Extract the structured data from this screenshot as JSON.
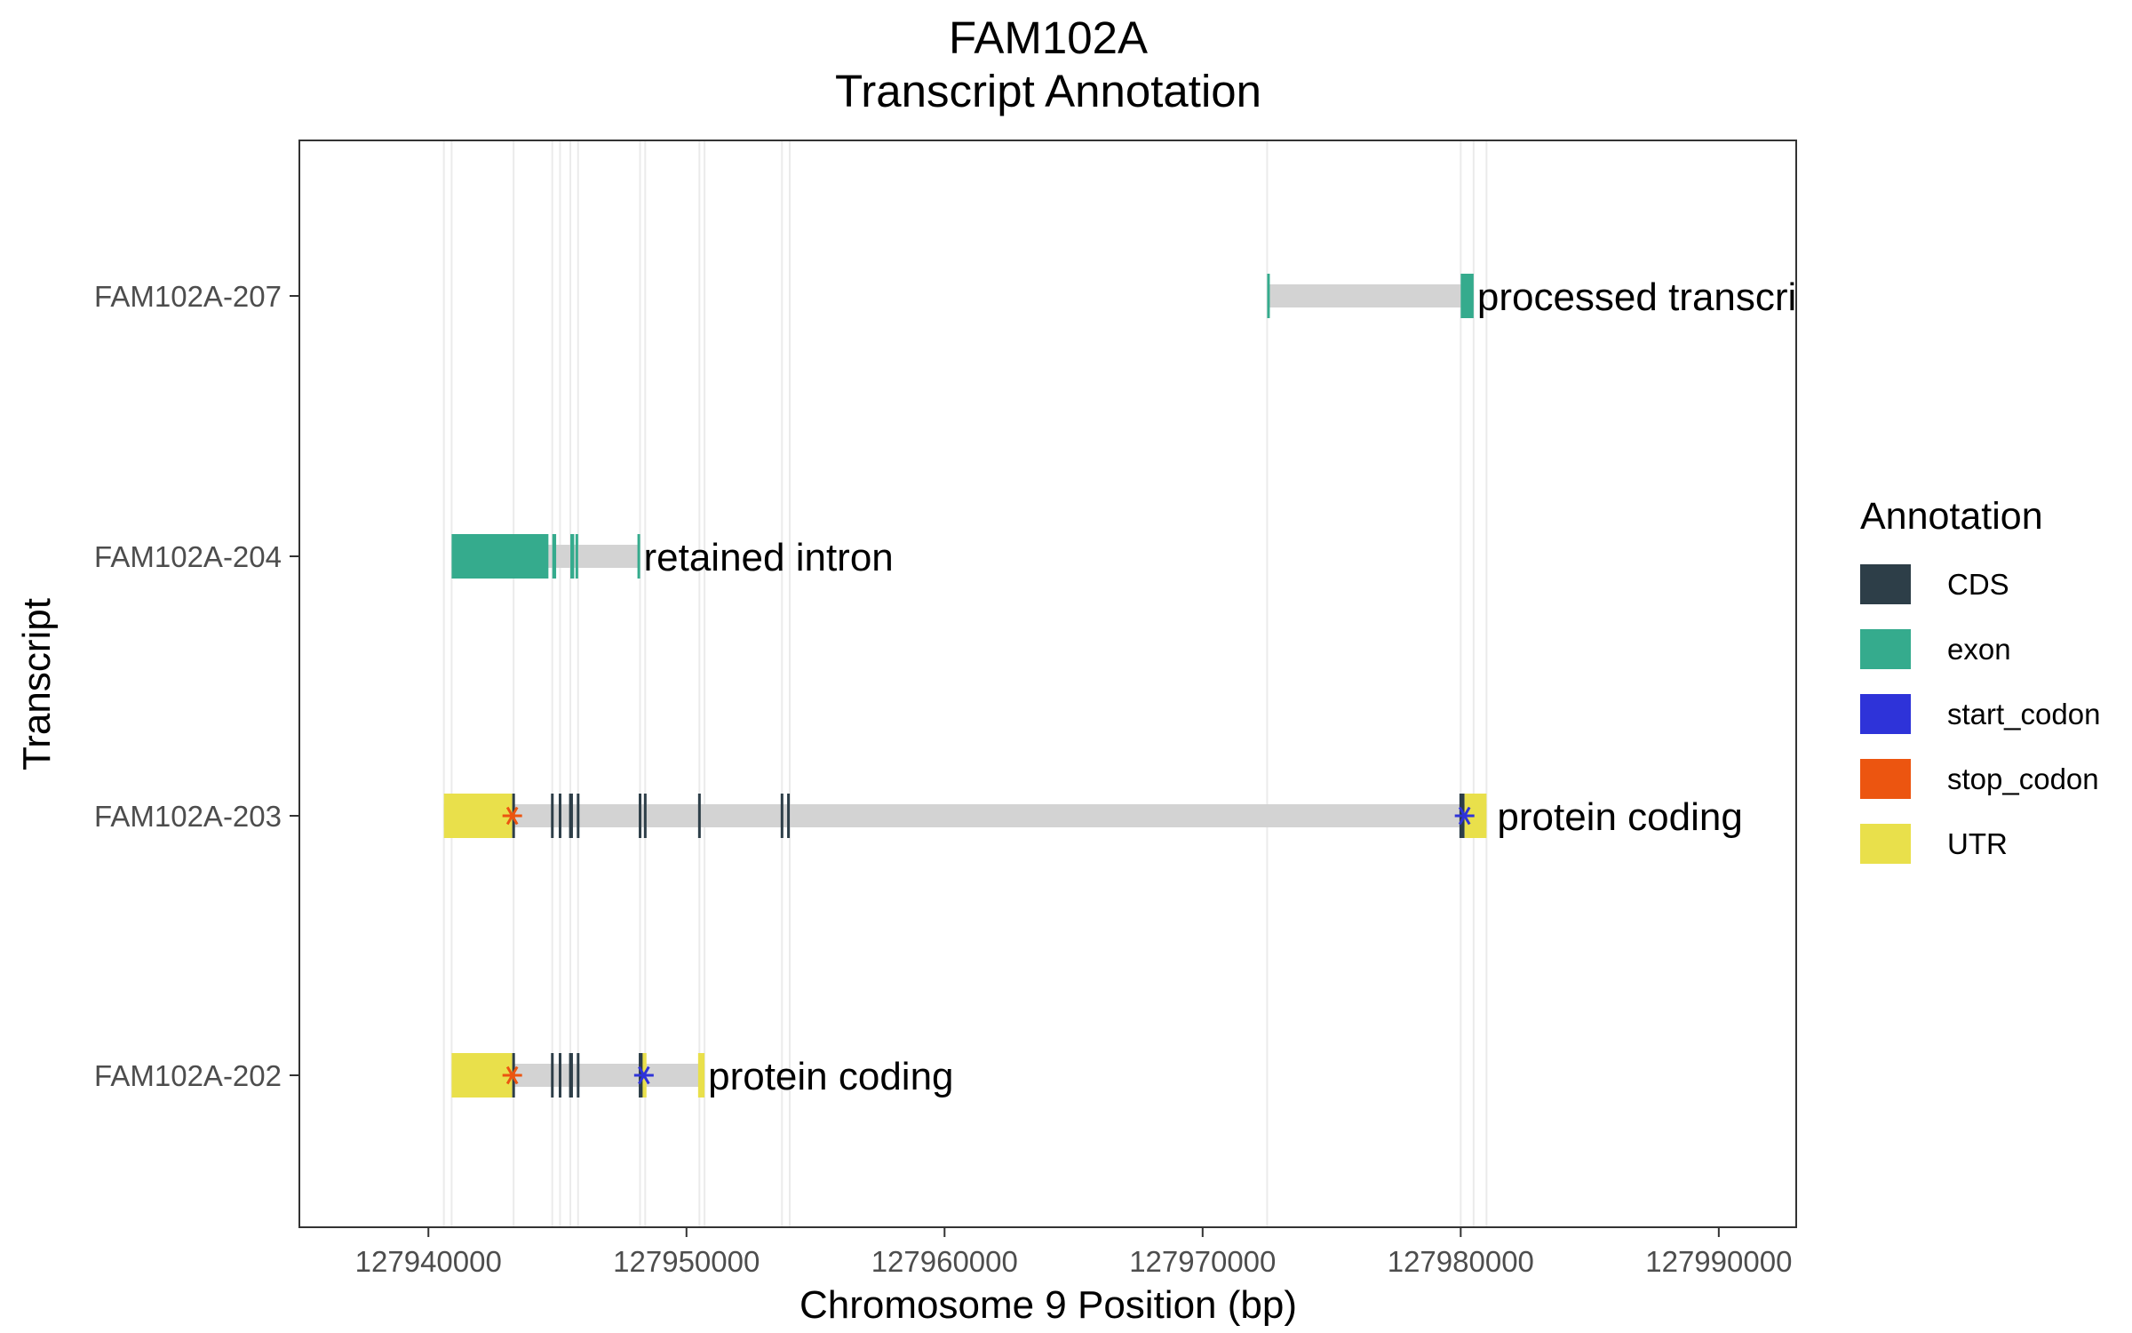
{
  "chart_data": {
    "type": "gene_transcript_annotation",
    "title": [
      "FAM102A",
      "Transcript Annotation"
    ],
    "xlabel": "Chromosome 9 Position (bp)",
    "ylabel": "Transcript",
    "xlim": [
      127935000,
      127993000
    ],
    "x_ticks": [
      127940000,
      127950000,
      127960000,
      127970000,
      127980000,
      127990000
    ],
    "x_tick_labels": [
      "127940000",
      "127950000",
      "127960000",
      "127970000",
      "127980000",
      "127990000"
    ],
    "grid": true,
    "legend": {
      "title": "Annotation",
      "position": "right",
      "items": [
        {
          "label": "CDS",
          "color": "#2d3e48"
        },
        {
          "label": "exon",
          "color": "#35ab8d"
        },
        {
          "label": "start_codon",
          "color": "#2e33d9"
        },
        {
          "label": "stop_codon",
          "color": "#ec5510"
        },
        {
          "label": "UTR",
          "color": "#e9e04b"
        }
      ]
    },
    "intron_color": "#d3d3d3",
    "exon_boundaries": [
      127940600,
      127940900,
      127943300,
      127944800,
      127945100,
      127945500,
      127945800,
      127948200,
      127948400,
      127950500,
      127950700,
      127953700,
      127954000,
      127972500,
      127980000,
      127980500,
      127981000
    ],
    "transcripts": [
      {
        "name": "FAM102A-207",
        "biotype": "processed transcript",
        "start": 127972500,
        "end": 127980500,
        "features": [
          {
            "type": "exon",
            "start": 127972500,
            "end": 127972600
          },
          {
            "type": "exon",
            "start": 127980000,
            "end": 127980500
          }
        ],
        "codons": []
      },
      {
        "name": "FAM102A-204",
        "biotype": "retained intron",
        "start": 127940900,
        "end": 127948200,
        "features": [
          {
            "type": "exon",
            "start": 127940900,
            "end": 127944650
          },
          {
            "type": "exon",
            "start": 127944800,
            "end": 127944950
          },
          {
            "type": "exon",
            "start": 127945500,
            "end": 127945650
          },
          {
            "type": "exon",
            "start": 127945700,
            "end": 127945800
          },
          {
            "type": "exon",
            "start": 127948100,
            "end": 127948200
          }
        ],
        "codons": []
      },
      {
        "name": "FAM102A-203",
        "biotype": "protein coding",
        "start": 127940600,
        "end": 127981000,
        "features": [
          {
            "type": "UTR",
            "start": 127940600,
            "end": 127943250
          },
          {
            "type": "CDS",
            "start": 127943250,
            "end": 127943350
          },
          {
            "type": "CDS",
            "start": 127944750,
            "end": 127944850
          },
          {
            "type": "CDS",
            "start": 127945050,
            "end": 127945150
          },
          {
            "type": "CDS",
            "start": 127945450,
            "end": 127945600
          },
          {
            "type": "CDS",
            "start": 127945750,
            "end": 127945850
          },
          {
            "type": "CDS",
            "start": 127948150,
            "end": 127948250
          },
          {
            "type": "CDS",
            "start": 127948350,
            "end": 127948450
          },
          {
            "type": "CDS",
            "start": 127950450,
            "end": 127950550
          },
          {
            "type": "CDS",
            "start": 127953650,
            "end": 127953750
          },
          {
            "type": "CDS",
            "start": 127953900,
            "end": 127954000
          },
          {
            "type": "CDS",
            "start": 127979950,
            "end": 127980150
          },
          {
            "type": "UTR",
            "start": 127980150,
            "end": 127981000
          }
        ],
        "codons": [
          {
            "type": "stop_codon",
            "pos": 127943250
          },
          {
            "type": "start_codon",
            "pos": 127980150
          }
        ]
      },
      {
        "name": "FAM102A-202",
        "biotype": "protein coding",
        "start": 127940900,
        "end": 127950700,
        "features": [
          {
            "type": "UTR",
            "start": 127940900,
            "end": 127943250
          },
          {
            "type": "CDS",
            "start": 127943250,
            "end": 127943350
          },
          {
            "type": "CDS",
            "start": 127944750,
            "end": 127944850
          },
          {
            "type": "CDS",
            "start": 127945050,
            "end": 127945150
          },
          {
            "type": "CDS",
            "start": 127945450,
            "end": 127945600
          },
          {
            "type": "CDS",
            "start": 127945750,
            "end": 127945850
          },
          {
            "type": "CDS",
            "start": 127948150,
            "end": 127948250
          },
          {
            "type": "CDS",
            "start": 127948250,
            "end": 127948300
          },
          {
            "type": "UTR",
            "start": 127948300,
            "end": 127948450
          },
          {
            "type": "UTR",
            "start": 127950450,
            "end": 127950700
          }
        ],
        "codons": [
          {
            "type": "stop_codon",
            "pos": 127943250
          },
          {
            "type": "start_codon",
            "pos": 127948350
          }
        ]
      }
    ]
  }
}
